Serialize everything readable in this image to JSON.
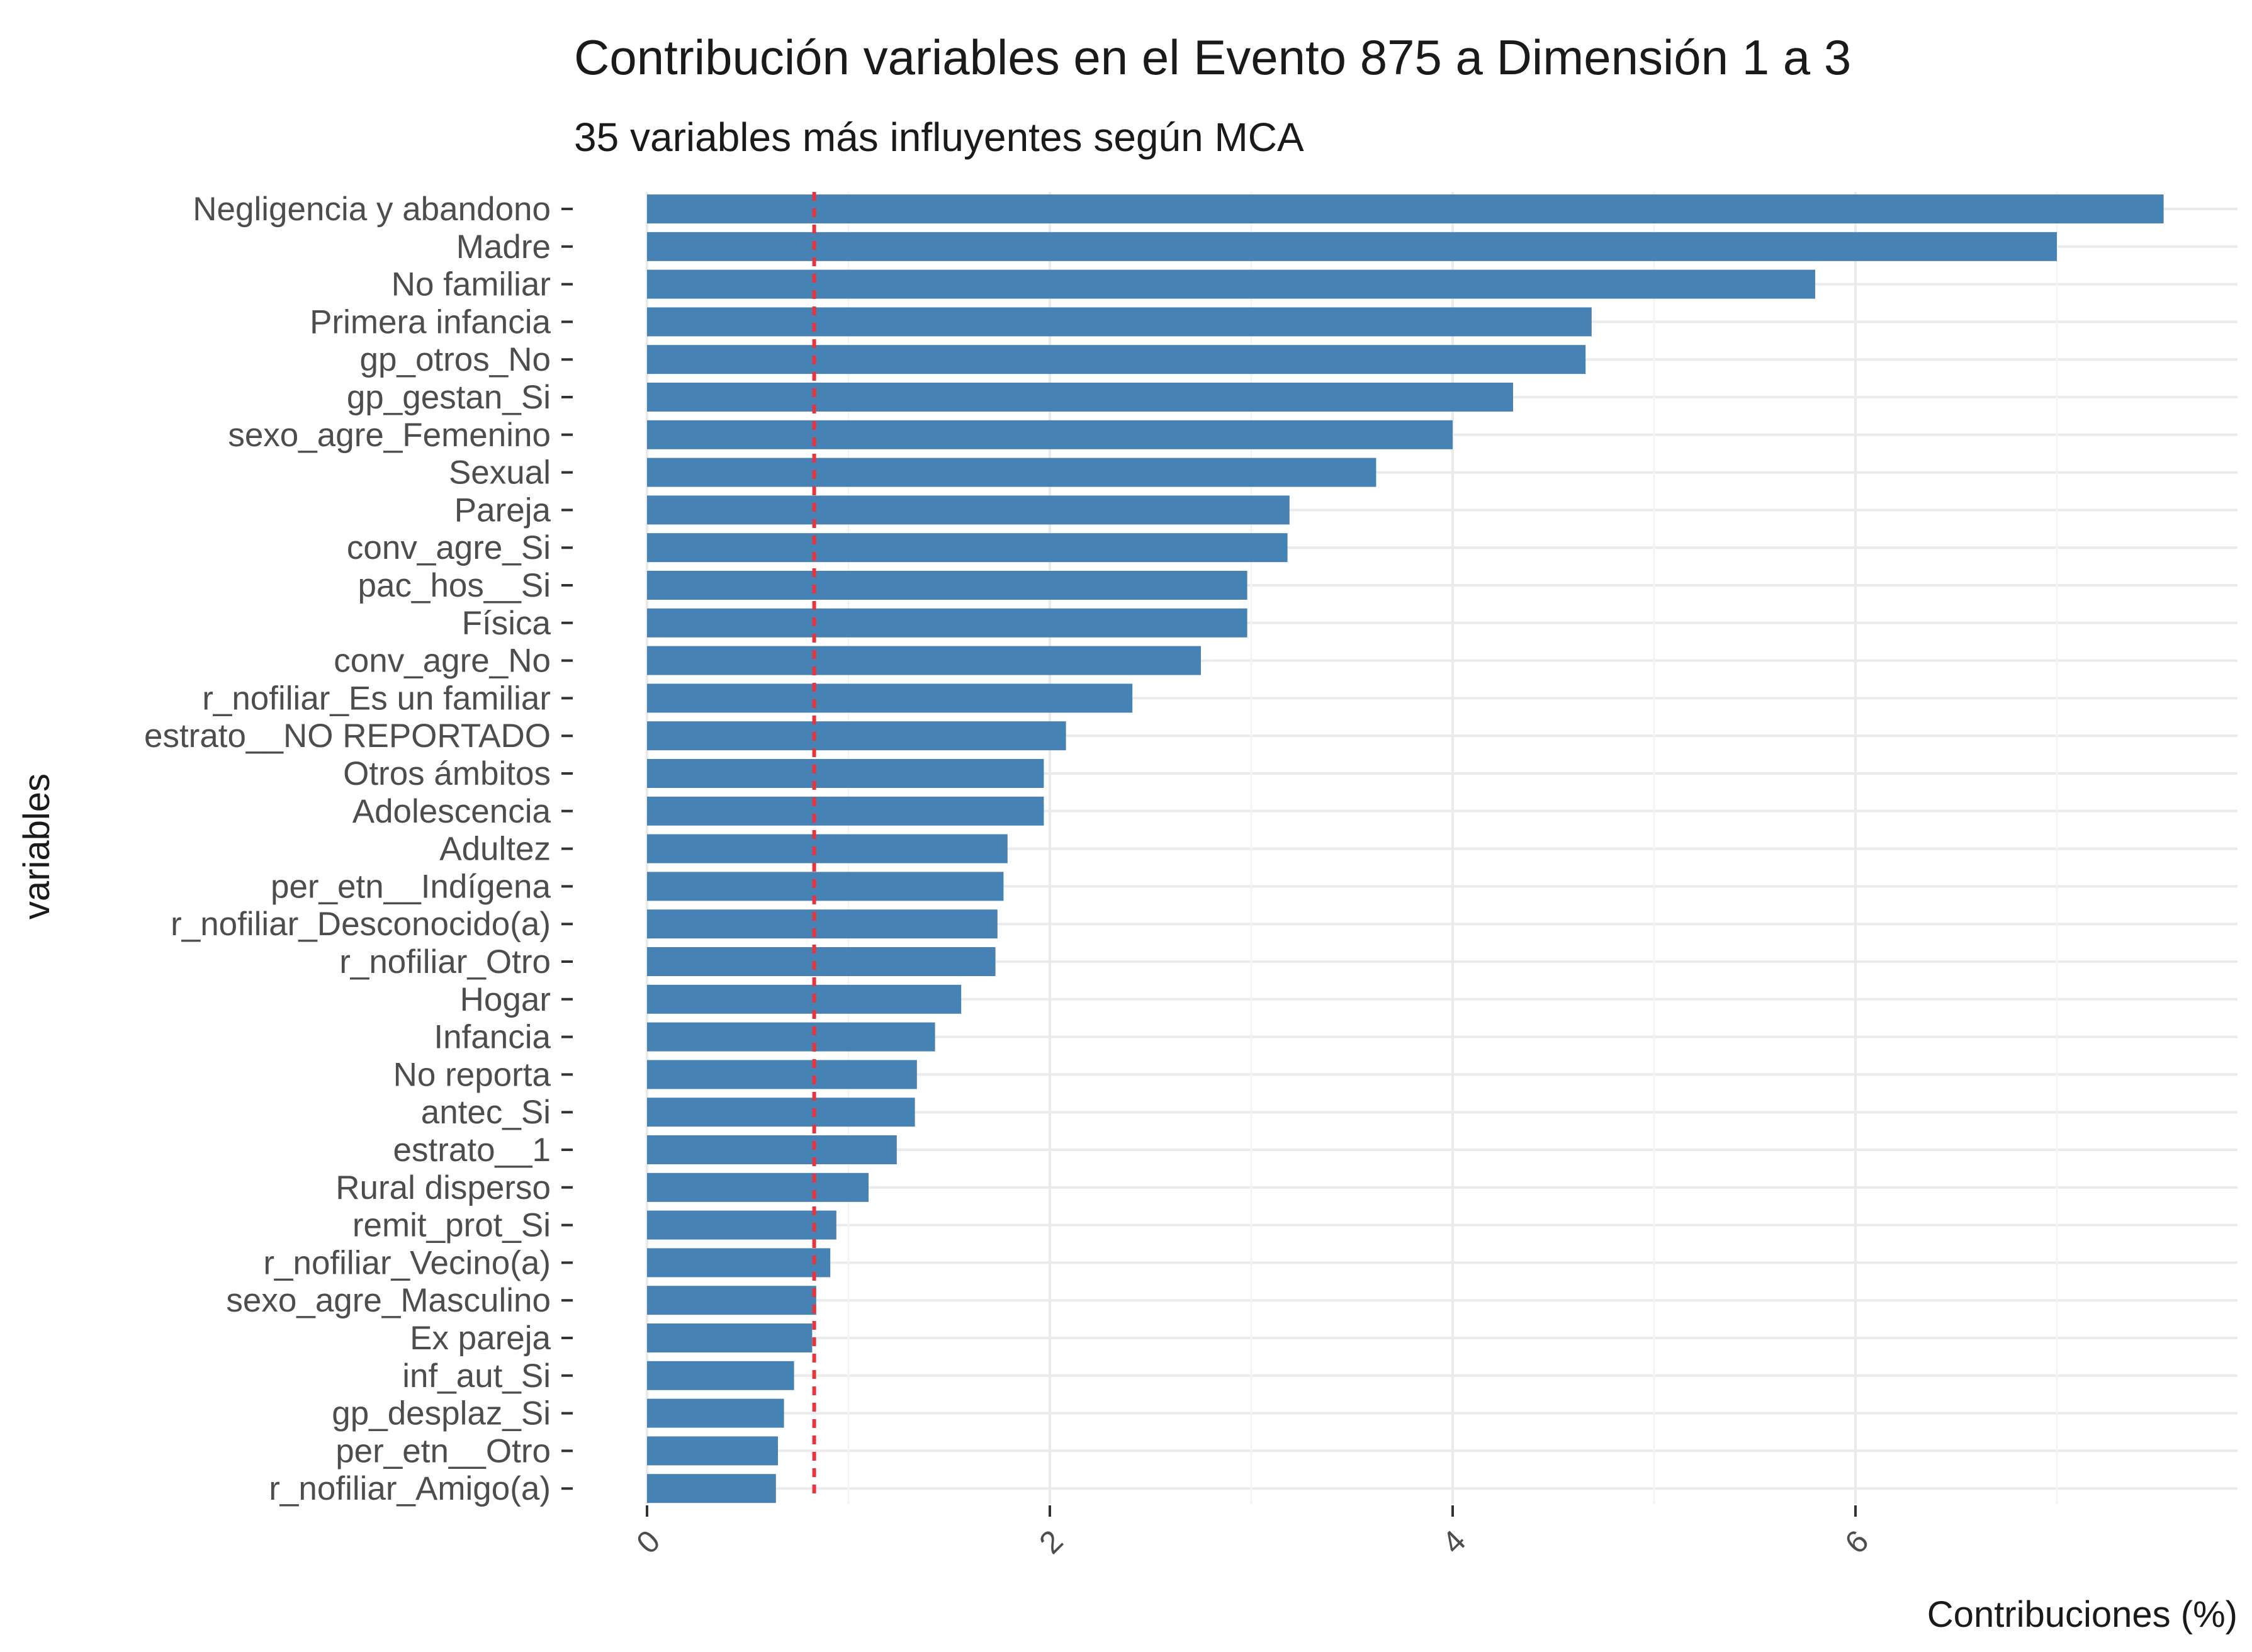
{
  "chart_data": {
    "type": "bar",
    "orientation": "horizontal",
    "title": "Contribución variables en el Evento 875 a Dimensión 1 a 3",
    "subtitle": "35 variables más influyentes según MCA",
    "xlabel": "Contribuciones (%)",
    "ylabel": "variables",
    "xlim": [
      0,
      7.6
    ],
    "x_ticks": [
      0,
      2,
      4,
      6
    ],
    "x_tick_labels": [
      "0",
      "2",
      "4",
      "6"
    ],
    "reference_line": {
      "value": 0.83,
      "style": "dashed",
      "color": "#e8343b"
    },
    "bar_color": "#4682b4",
    "grid": true,
    "categories": [
      "Negligencia y abandono",
      "Madre",
      "No familiar",
      "Primera infancia",
      "gp_otros_No",
      "gp_gestan_Si",
      "sexo_agre_Femenino",
      "Sexual",
      "Pareja",
      "conv_agre_Si",
      "pac_hos__Si",
      "Física",
      "conv_agre_No",
      "r_nofiliar_Es un familiar",
      "estrato__NO REPORTADO",
      "Otros ámbitos",
      "Adolescencia",
      "Adultez",
      "per_etn__Indígena",
      "r_nofiliar_Desconocido(a)",
      "r_nofiliar_Otro",
      "Hogar",
      "Infancia",
      "No reporta",
      "antec_Si",
      "estrato__1",
      "Rural disperso",
      "remit_prot_Si",
      "r_nofiliar_Vecino(a)",
      "sexo_agre_Masculino",
      "Ex pareja",
      "inf_aut_Si",
      "gp_desplaz_Si",
      "per_etn__Otro",
      "r_nofiliar_Amigo(a)"
    ],
    "values": [
      7.53,
      7.0,
      5.8,
      4.69,
      4.66,
      4.3,
      4.0,
      3.62,
      3.19,
      3.18,
      2.98,
      2.98,
      2.75,
      2.41,
      2.08,
      1.97,
      1.97,
      1.79,
      1.77,
      1.74,
      1.73,
      1.56,
      1.43,
      1.34,
      1.33,
      1.24,
      1.1,
      0.94,
      0.91,
      0.84,
      0.82,
      0.73,
      0.68,
      0.65,
      0.64
    ]
  }
}
